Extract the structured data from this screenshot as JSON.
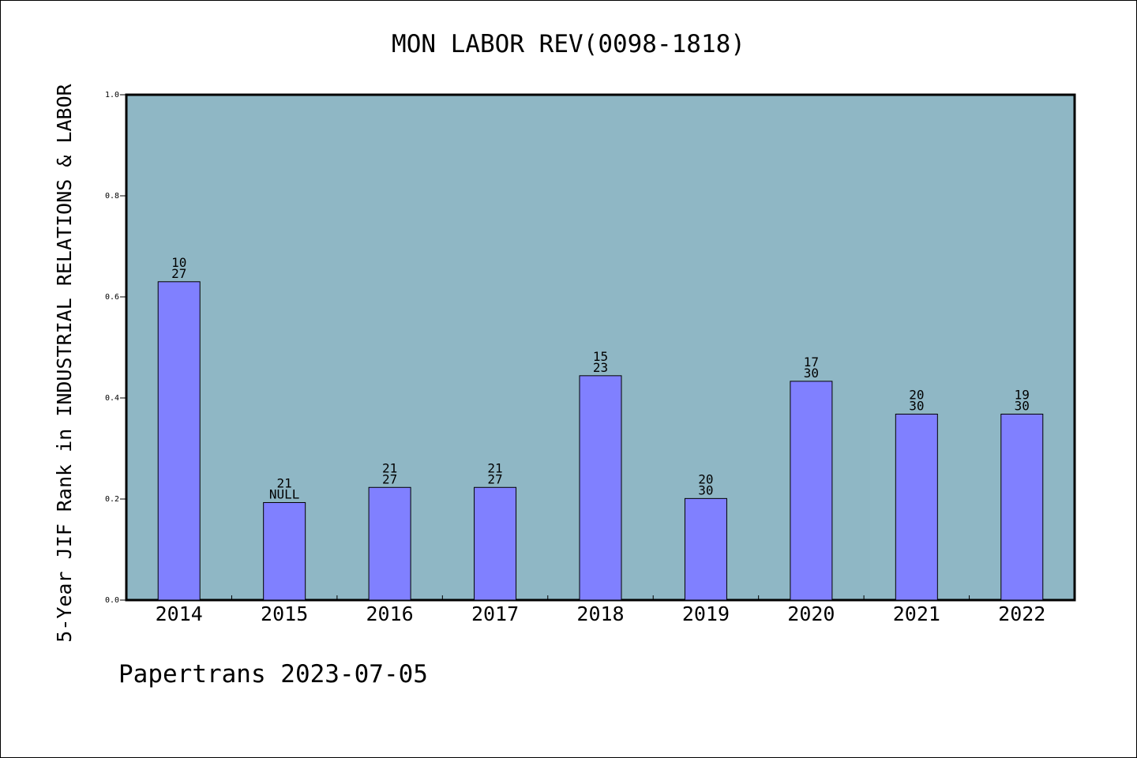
{
  "chart_data": {
    "type": "bar",
    "title": "MON LABOR REV(0098-1818)",
    "ylabel": "5-Year JIF Rank in INDUSTRIAL RELATIONS & LABOR",
    "xlabel": "",
    "ylim": [
      0.0,
      1.0
    ],
    "yticks": [
      "0.0",
      "0.2",
      "0.4",
      "0.6",
      "0.8",
      "1.0"
    ],
    "categories": [
      "2014",
      "2015",
      "2016",
      "2017",
      "2018",
      "2019",
      "2020",
      "2021",
      "2022"
    ],
    "values": [
      0.63,
      0.193,
      0.223,
      0.223,
      0.444,
      0.201,
      0.433,
      0.368,
      0.368
    ],
    "labels_top": [
      "10",
      "21",
      "21",
      "21",
      "15",
      "20",
      "17",
      "20",
      "19"
    ],
    "labels_bottom": [
      "27",
      "NULL",
      "27",
      "27",
      "23",
      "30",
      "30",
      "30",
      "30"
    ],
    "grid": false,
    "colors": {
      "plot_bg": "#8fb7c5",
      "bar": "#8080ff",
      "bar_stroke": "#000000"
    }
  },
  "footer": {
    "credit": "Papertrans 2023-07-05"
  }
}
